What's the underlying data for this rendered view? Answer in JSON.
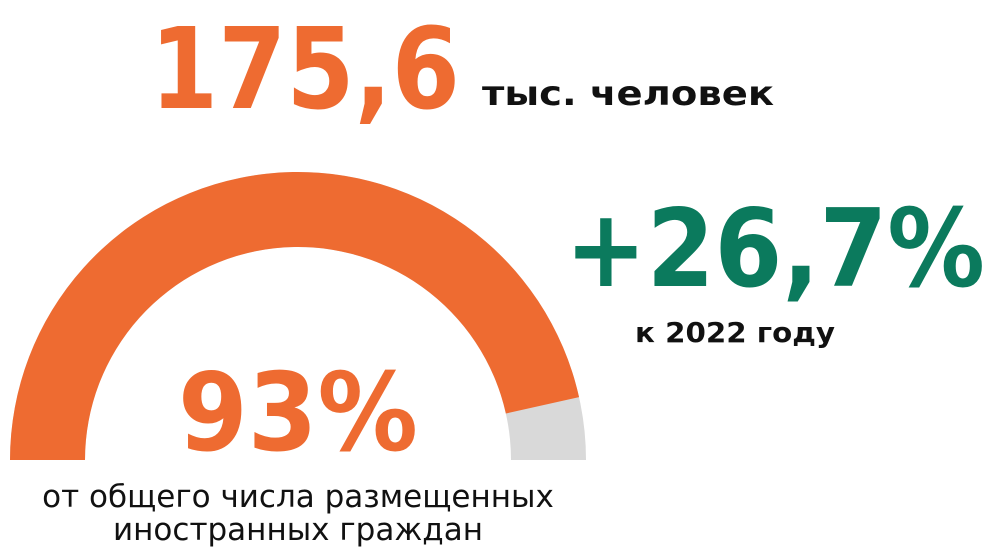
{
  "headline": {
    "number": "175,6",
    "unit": "тыс. человек"
  },
  "change": {
    "text": "+26,7%",
    "caption": "к 2022 году"
  },
  "chart_data": {
    "type": "gauge",
    "values": [
      93
    ],
    "value_labels": [
      "93%"
    ],
    "ylim": [
      0,
      100
    ],
    "color": "#ee6b31",
    "track_color": "#d9d9d9",
    "caption": [
      "от общего числа размещенных",
      "иностранных граждан"
    ]
  }
}
